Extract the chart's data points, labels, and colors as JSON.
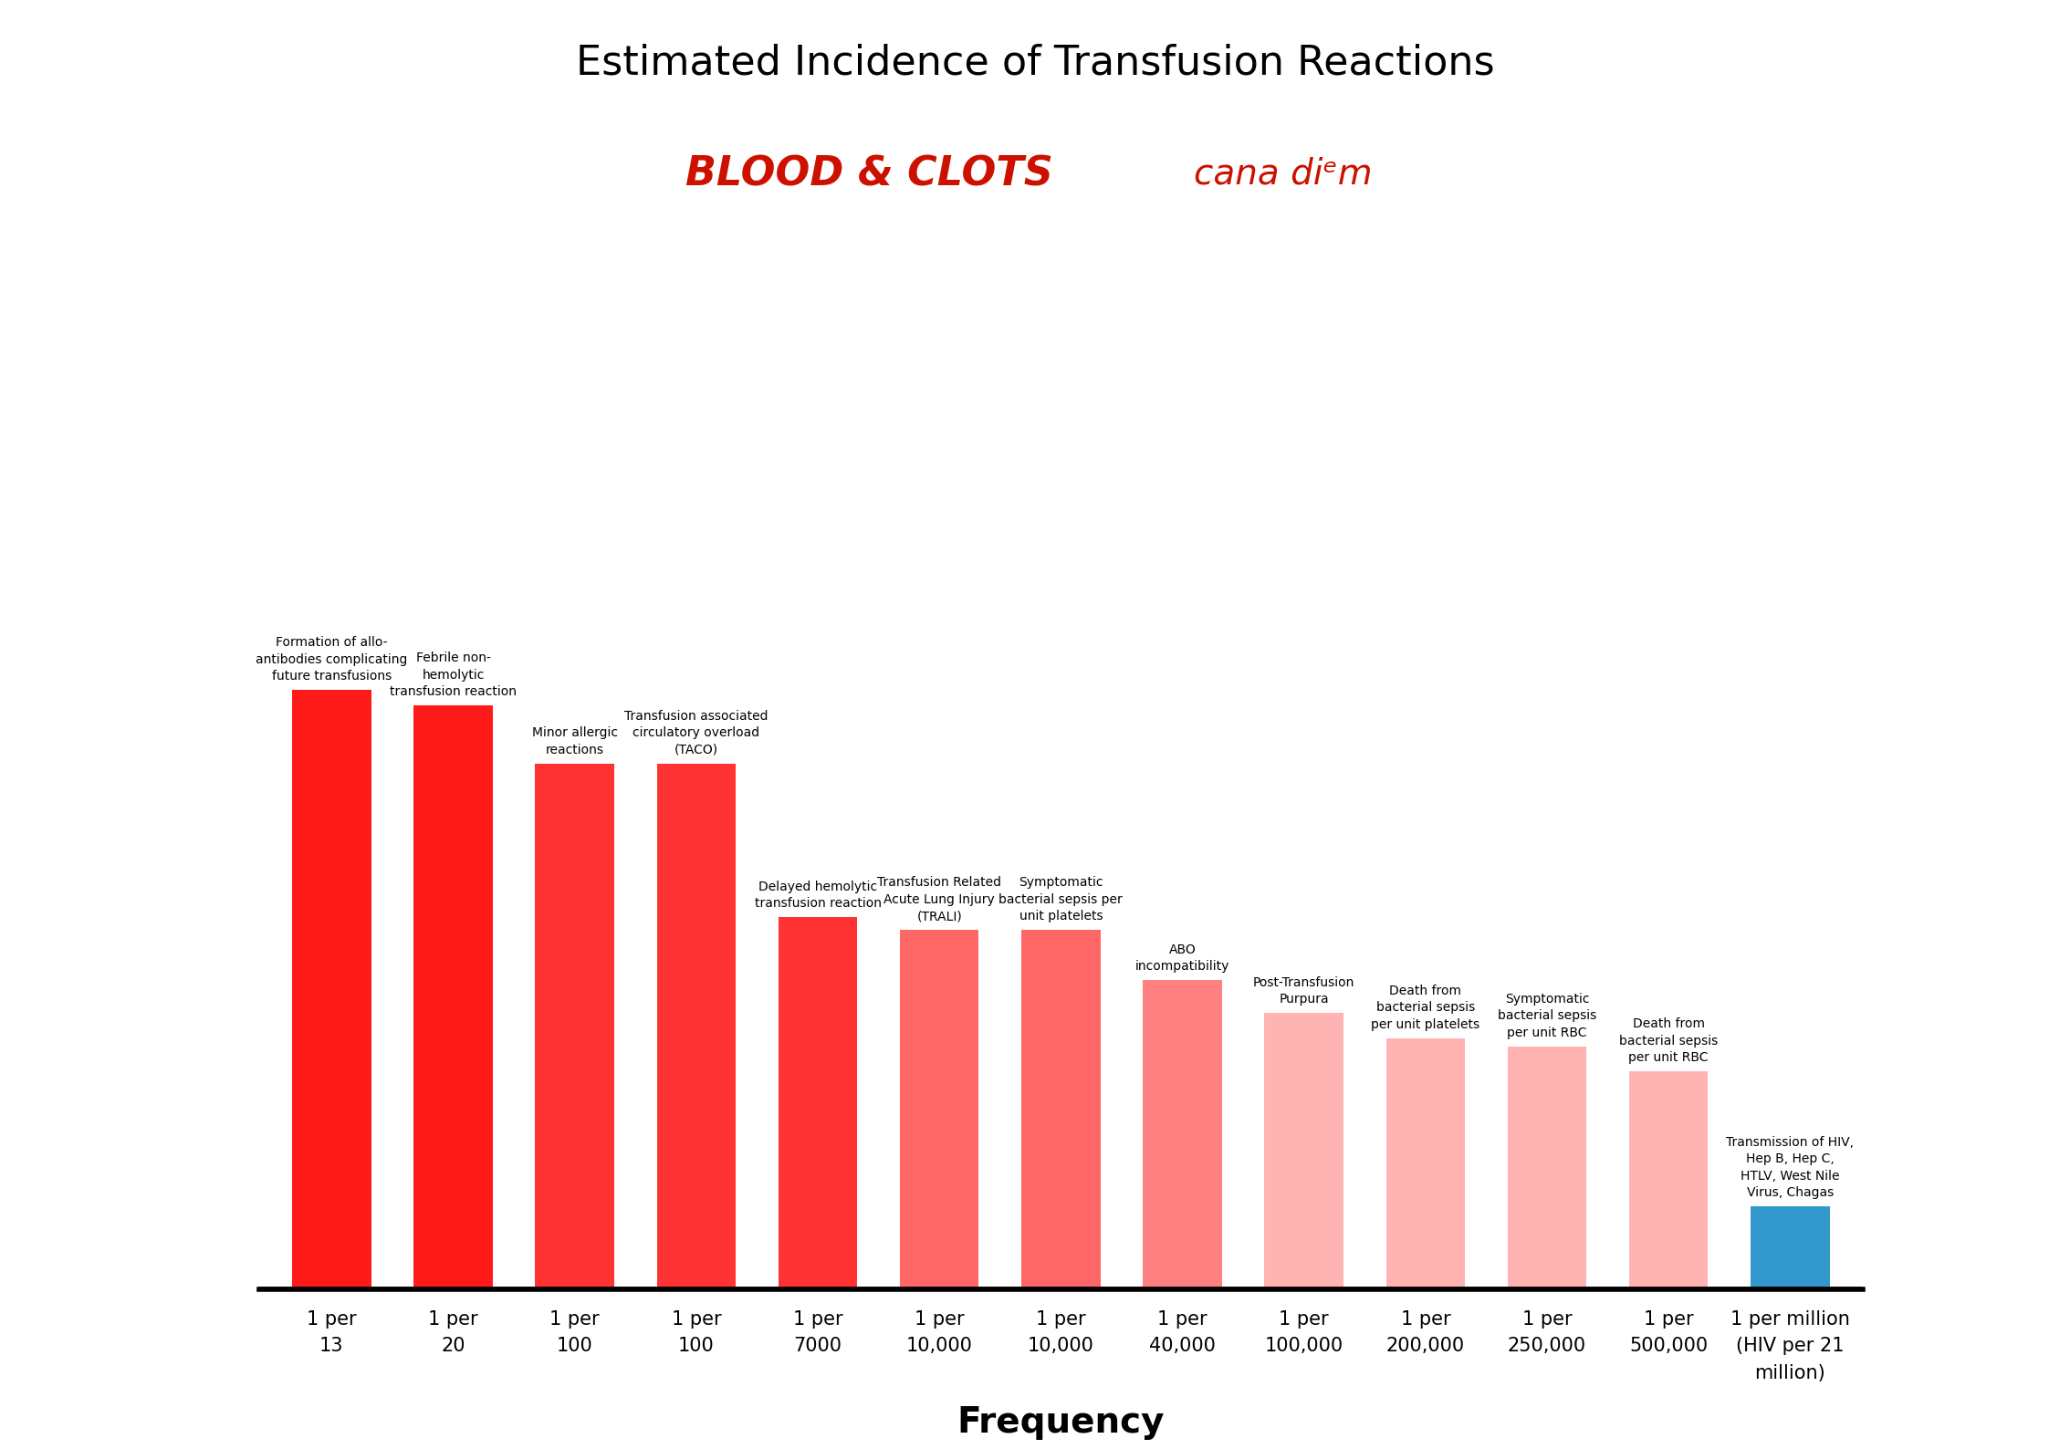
{
  "title": "Estimated Incidence of Transfusion Reactions",
  "xlabel": "Frequency",
  "background_color": "#ffffff",
  "categories": [
    "1 per\n13",
    "1 per\n20",
    "1 per\n100",
    "1 per\n100",
    "1 per\n7000",
    "1 per\n10,000",
    "1 per\n10,000",
    "1 per\n40,000",
    "1 per\n100,000",
    "1 per\n200,000",
    "1 per\n250,000",
    "1 per\n500,000",
    "1 per million\n(HIV per 21\nmillion)"
  ],
  "labels": [
    "Formation of allo-\nantibodies complicating\nfuture transfusions",
    "Febrile non-\nhemolytic\ntransfusion reaction",
    "Minor allergic\nreactions",
    "Transfusion associated\ncirculatory overload\n(TACO)",
    "Delayed hemolytic\ntransfusion reaction",
    "Transfusion Related\nAcute Lung Injury\n(TRALI)",
    "Symptomatic\nbacterial sepsis per\nunit platelets",
    "ABO\nincompatibility",
    "Post-Transfusion\nPurpura",
    "Death from\nbacterial sepsis\nper unit platelets",
    "Symptomatic\nbacterial sepsis\nper unit RBC",
    "Death from\nbacterial sepsis\nper unit RBC",
    "Transmission of HIV,\nHep B, Hep C,\nHTLV, West Nile\nVirus, Chagas"
  ],
  "frequencies": [
    13,
    20,
    100,
    100,
    7000,
    10000,
    10000,
    40000,
    100000,
    200000,
    250000,
    500000,
    21000000
  ],
  "bar_colors": [
    "#ff1a1a",
    "#ff1a1a",
    "#ff3333",
    "#ff3333",
    "#ff3333",
    "#ff6666",
    "#ff6666",
    "#ff8080",
    "#ffb3b3",
    "#ffb3b3",
    "#ffb3b3",
    "#ffb3b3",
    "#3399cc"
  ],
  "title_fontsize": 32,
  "label_fontsize": 10,
  "tick_fontsize": 15,
  "xlabel_fontsize": 28
}
